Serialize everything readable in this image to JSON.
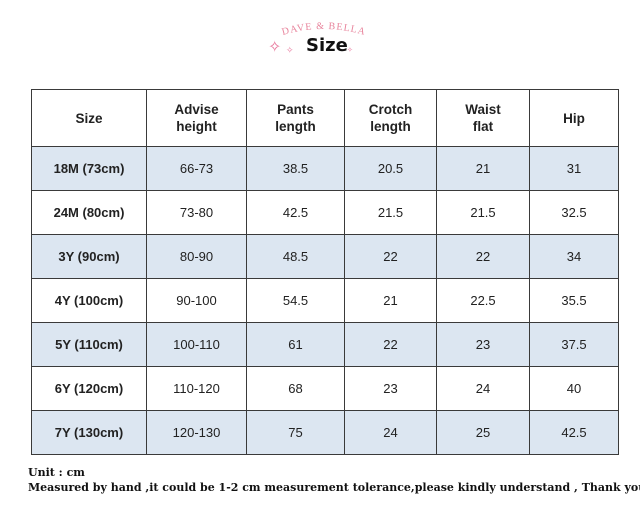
{
  "brand": {
    "logo_text": "DAVE & BELLA",
    "accent_color": "#e8849c"
  },
  "header": {
    "title": "Size",
    "sparkle_icon": "✧"
  },
  "table": {
    "header_bg": "#ffffff",
    "stripe_color": "#dce6f1",
    "columns": [
      "Size",
      "Advise\nheight",
      "Pants\nlength",
      "Crotch\nlength",
      "Waist\nflat",
      "Hip"
    ],
    "rows": [
      {
        "size": "18M (73cm)",
        "height": "66-73",
        "pants": "38.5",
        "crotch": "20.5",
        "waist": "21",
        "hip": "31"
      },
      {
        "size": "24M (80cm)",
        "height": "73-80",
        "pants": "42.5",
        "crotch": "21.5",
        "waist": "21.5",
        "hip": "32.5"
      },
      {
        "size": "3Y (90cm)",
        "height": "80-90",
        "pants": "48.5",
        "crotch": "22",
        "waist": "22",
        "hip": "34"
      },
      {
        "size": "4Y (100cm)",
        "height": "90-100",
        "pants": "54.5",
        "crotch": "21",
        "waist": "22.5",
        "hip": "35.5"
      },
      {
        "size": "5Y (110cm)",
        "height": "100-110",
        "pants": "61",
        "crotch": "22",
        "waist": "23",
        "hip": "37.5"
      },
      {
        "size": "6Y (120cm)",
        "height": "110-120",
        "pants": "68",
        "crotch": "23",
        "waist": "24",
        "hip": "40"
      },
      {
        "size": "7Y (130cm)",
        "height": "120-130",
        "pants": "75",
        "crotch": "24",
        "waist": "25",
        "hip": "42.5"
      }
    ]
  },
  "notes": {
    "unit": "Unit : cm",
    "disclaimer": "Measured by hand ,it could be 1-2 cm measurement tolerance,please kindly understand , Thank you !"
  }
}
